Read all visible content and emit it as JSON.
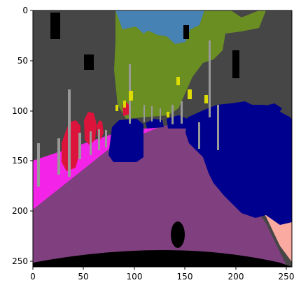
{
  "x_ticks": [
    "0",
    "50",
    "100",
    "150",
    "200",
    "250"
  ],
  "y_ticks": [
    "0",
    "50",
    "100",
    "150",
    "200",
    "250"
  ],
  "colors": {
    "building": "#464646",
    "sky": "#4682b4",
    "vegetation": "#6b8e23",
    "road": "#804080",
    "sidewalk_left": "#f423e8",
    "sidewalk_right": "#faaaa0",
    "vehicle": "#00008e",
    "pole": "#999999",
    "traffic_sign": "#dcdc00",
    "person": "#dc143c",
    "ego_vehicle": "#000000"
  }
}
